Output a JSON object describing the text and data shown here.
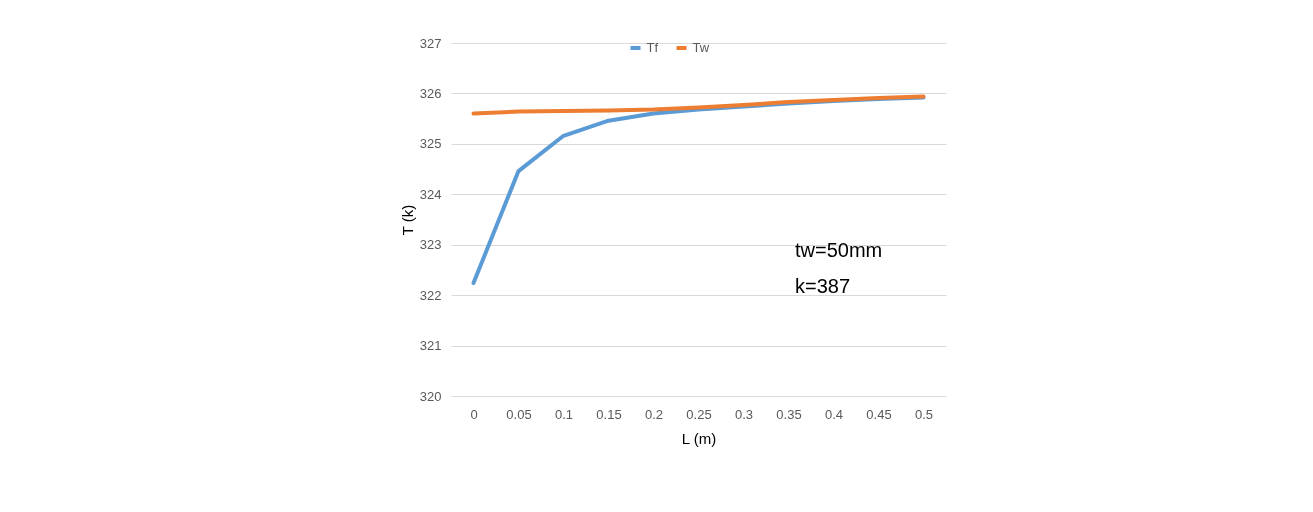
{
  "chart_data": {
    "type": "line",
    "xlabel": "L (m)",
    "ylabel": "T (k)",
    "categories": [
      "0",
      "0.05",
      "0.1",
      "0.15",
      "0.2",
      "0.25",
      "0.3",
      "0.35",
      "0.4",
      "0.45",
      "0.5"
    ],
    "series": [
      {
        "name": "Tf",
        "color": "#5b9bd5",
        "values": [
          322.24,
          324.46,
          325.16,
          325.46,
          325.6,
          325.68,
          325.74,
          325.8,
          325.85,
          325.89,
          325.92
        ]
      },
      {
        "name": "Tw",
        "color": "#ed7d31",
        "values": [
          325.6,
          325.64,
          325.65,
          325.66,
          325.68,
          325.72,
          325.77,
          325.83,
          325.87,
          325.91,
          325.94
        ]
      }
    ],
    "ylim": [
      320,
      327
    ],
    "yticks": [
      320,
      321,
      322,
      323,
      324,
      325,
      326,
      327
    ],
    "grid": "y",
    "legend": "top",
    "marker": "none",
    "line_style": "solid",
    "annotations": [
      "tw=50mm",
      "k=387"
    ]
  }
}
